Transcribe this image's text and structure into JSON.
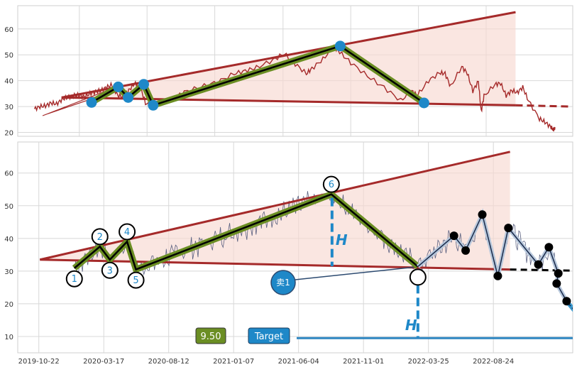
{
  "chart_data": [
    {
      "type": "line",
      "panel": "top",
      "title": "",
      "xlabel": "",
      "ylabel": "",
      "yticks": [
        20,
        30,
        40,
        50,
        60
      ],
      "ylim": [
        18.5,
        69
      ],
      "grid": true,
      "series": [
        {
          "points": [
            [
              0.03,
              29.1
            ],
            [
              0.04,
              30.0
            ],
            [
              0.05,
              30.3
            ],
            [
              0.06,
              31.4
            ],
            [
              0.07,
              31.0
            ],
            [
              0.08,
              32.8
            ],
            [
              0.09,
              33.6
            ],
            [
              0.1,
              34.2
            ],
            [
              0.11,
              34.4
            ],
            [
              0.12,
              33.8
            ],
            [
              0.13,
              35.0
            ],
            [
              0.14,
              35.7
            ],
            [
              0.15,
              36.2
            ],
            [
              0.16,
              37.5
            ],
            [
              0.17,
              38.4
            ],
            [
              0.18,
              34.3
            ],
            [
              0.19,
              33.8
            ],
            [
              0.2,
              36.2
            ],
            [
              0.21,
              38.8
            ],
            [
              0.22,
              38.5
            ],
            [
              0.23,
              31.3
            ],
            [
              0.25,
              31.6
            ],
            [
              0.28,
              33.0
            ],
            [
              0.3,
              35.6
            ],
            [
              0.33,
              37.6
            ],
            [
              0.36,
              39.5
            ],
            [
              0.39,
              42.7
            ],
            [
              0.41,
              43.8
            ],
            [
              0.43,
              45.0
            ],
            [
              0.46,
              48.0
            ],
            [
              0.48,
              50.5
            ],
            [
              0.5,
              46.5
            ],
            [
              0.52,
              42.7
            ],
            [
              0.53,
              44.7
            ],
            [
              0.55,
              48.3
            ],
            [
              0.57,
              53.4
            ],
            [
              0.58,
              51.0
            ],
            [
              0.6,
              47.0
            ],
            [
              0.63,
              41.8
            ],
            [
              0.66,
              37.4
            ],
            [
              0.69,
              32.3
            ],
            [
              0.71,
              36.0
            ],
            [
              0.72,
              34.3
            ],
            [
              0.74,
              40.0
            ],
            [
              0.76,
              43.0
            ],
            [
              0.77,
              42.8
            ],
            [
              0.78,
              37.7
            ],
            [
              0.8,
              45.4
            ],
            [
              0.81,
              42.9
            ],
            [
              0.82,
              36.0
            ],
            [
              0.83,
              39.8
            ],
            [
              0.835,
              28.0
            ],
            [
              0.84,
              34.0
            ],
            [
              0.86,
              38.6
            ],
            [
              0.87,
              39.0
            ],
            [
              0.88,
              34.2
            ],
            [
              0.89,
              36.2
            ],
            [
              0.9,
              35.4
            ],
            [
              0.91,
              37.5
            ],
            [
              0.92,
              32.3
            ],
            [
              0.94,
              25.3
            ],
            [
              0.95,
              24.0
            ],
            [
              0.96,
              22.2
            ],
            [
              0.965,
              21.0
            ],
            [
              0.968,
              22.0
            ]
          ]
        }
      ],
      "pattern_points": [
        {
          "x": 0.133,
          "y": 31.6
        },
        {
          "x": 0.181,
          "y": 37.6
        },
        {
          "x": 0.199,
          "y": 33.5
        },
        {
          "x": 0.227,
          "y": 38.6
        },
        {
          "x": 0.244,
          "y": 30.5
        },
        {
          "x": 0.581,
          "y": 53.4
        },
        {
          "x": 0.732,
          "y": 31.4
        }
      ],
      "trendlines": {
        "upper": [
          [
            0.079,
            33.5
          ],
          [
            0.897,
            66.5
          ]
        ],
        "lower": [
          [
            0.079,
            33.5
          ],
          [
            0.897,
            30.5
          ]
        ],
        "lower_extension": [
          [
            0.897,
            30.5
          ],
          [
            0.998,
            30.0
          ]
        ]
      }
    },
    {
      "type": "line",
      "panel": "bottom",
      "title": "",
      "xlabel": "",
      "ylabel": "",
      "yticks": [
        10,
        20,
        30,
        40,
        50,
        60
      ],
      "ylim": [
        5,
        69.5
      ],
      "xticks": [
        "2019-10-22",
        "2020-03-17",
        "2020-08-12",
        "2021-01-07",
        "2021-06-04",
        "2021-11-01",
        "2022-03-25",
        "2022-08-24"
      ],
      "grid": true,
      "pattern_points": [
        {
          "label": "1",
          "x": 0.102,
          "y": 30.9
        },
        {
          "label": "2",
          "x": 0.148,
          "y": 37.5
        },
        {
          "label": "3",
          "x": 0.166,
          "y": 33.5
        },
        {
          "label": "4",
          "x": 0.197,
          "y": 39.0
        },
        {
          "label": "5",
          "x": 0.213,
          "y": 30.5
        },
        {
          "label": "6",
          "x": 0.565,
          "y": 53.5
        },
        {
          "label": "",
          "x": 0.721,
          "y": 31.4
        }
      ],
      "trendlines": {
        "upper": [
          [
            0.04,
            33.5
          ],
          [
            0.887,
            66.5
          ]
        ],
        "lower": [
          [
            0.04,
            33.5
          ],
          [
            0.887,
            30.5
          ]
        ],
        "lower_extension": [
          [
            0.887,
            30.5
          ],
          [
            1.042,
            30.0
          ]
        ]
      },
      "swing_points": [
        [
          0.786,
          40.8
        ],
        [
          0.807,
          36.3
        ],
        [
          0.837,
          47.3
        ],
        [
          0.865,
          28.5
        ],
        [
          0.884,
          43.2
        ],
        [
          0.938,
          32.0
        ],
        [
          0.957,
          37.3
        ],
        [
          0.974,
          29.3
        ],
        [
          0.971,
          26.2
        ],
        [
          0.989,
          20.8
        ]
      ],
      "projection": {
        "from": [
          0.989,
          20.8
        ],
        "to": [
          1.044,
          9.5
        ]
      },
      "height_marker_label": "H",
      "sell_label": "卖1",
      "target_label": "Target",
      "target_value": "9.50"
    }
  ]
}
